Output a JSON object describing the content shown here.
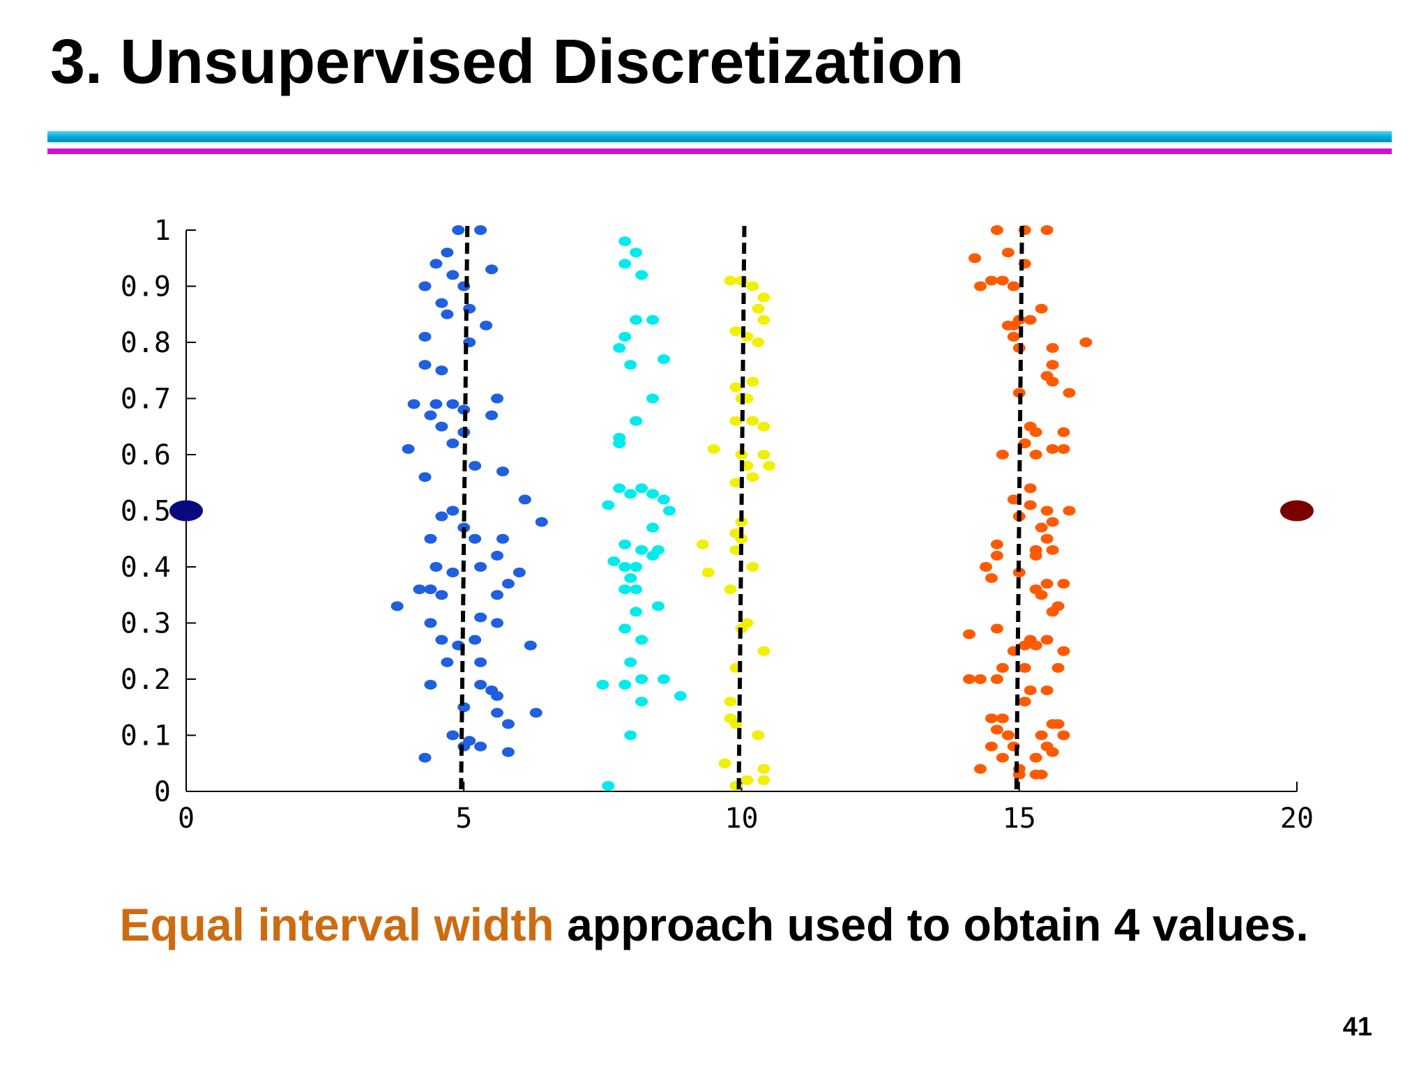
{
  "slide": {
    "title": "3. Unsupervised Discretization",
    "caption_emphasis": "Equal interval width",
    "caption_rest": " approach used to obtain 4 values.",
    "page_number": "41"
  },
  "colors": {
    "rule_cyan": "#00a8d8",
    "rule_magenta": "#d40fd4",
    "caption_emphasis": "#cc6c12"
  },
  "chart_data": {
    "type": "scatter",
    "title": "",
    "xlabel": "",
    "ylabel": "",
    "xlim": [
      0,
      20
    ],
    "ylim": [
      0,
      1
    ],
    "x_ticks": [
      0,
      5,
      10,
      15,
      20
    ],
    "x_tick_labels": [
      "0",
      "5",
      "10",
      "15",
      "20"
    ],
    "y_ticks": [
      0,
      0.1,
      0.2,
      0.3,
      0.4,
      0.5,
      0.6,
      0.7,
      0.8,
      0.9,
      1
    ],
    "y_tick_labels": [
      "0",
      "0.1",
      "0.2",
      "0.3",
      "0.4",
      "0.5",
      "0.6",
      "0.7",
      "0.8",
      "0.9",
      "1"
    ],
    "grid": false,
    "legend": "none",
    "cut_points": [
      5,
      10,
      15
    ],
    "cut_style": "dashed black vertical lines",
    "endpoints": [
      {
        "x": 0,
        "y": 0.5,
        "color": "#0a0a80"
      },
      {
        "x": 20,
        "y": 0.5,
        "color": "#7a0000"
      }
    ],
    "series": [
      {
        "color": "#1f5fe0",
        "points": [
          [
            4.9,
            1.0
          ],
          [
            5.3,
            1.0
          ],
          [
            4.7,
            0.96
          ],
          [
            4.8,
            0.92
          ],
          [
            4.5,
            0.94
          ],
          [
            5.5,
            0.93
          ],
          [
            4.3,
            0.9
          ],
          [
            4.6,
            0.87
          ],
          [
            5.1,
            0.86
          ],
          [
            5.4,
            0.83
          ],
          [
            4.7,
            0.85
          ],
          [
            5.0,
            0.9
          ],
          [
            4.3,
            0.81
          ],
          [
            5.1,
            0.8
          ],
          [
            4.3,
            0.76
          ],
          [
            4.6,
            0.75
          ],
          [
            4.1,
            0.69
          ],
          [
            4.5,
            0.69
          ],
          [
            4.8,
            0.69
          ],
          [
            5.0,
            0.68
          ],
          [
            5.6,
            0.7
          ],
          [
            5.5,
            0.67
          ],
          [
            4.6,
            0.65
          ],
          [
            5.0,
            0.64
          ],
          [
            4.4,
            0.67
          ],
          [
            4.0,
            0.61
          ],
          [
            4.8,
            0.62
          ],
          [
            5.2,
            0.58
          ],
          [
            5.7,
            0.57
          ],
          [
            4.3,
            0.56
          ],
          [
            6.1,
            0.52
          ],
          [
            6.4,
            0.48
          ],
          [
            4.6,
            0.49
          ],
          [
            4.8,
            0.5
          ],
          [
            5.0,
            0.47
          ],
          [
            5.2,
            0.45
          ],
          [
            4.4,
            0.45
          ],
          [
            5.7,
            0.45
          ],
          [
            5.6,
            0.42
          ],
          [
            4.5,
            0.4
          ],
          [
            4.8,
            0.39
          ],
          [
            5.3,
            0.4
          ],
          [
            6.0,
            0.39
          ],
          [
            5.8,
            0.37
          ],
          [
            4.2,
            0.36
          ],
          [
            4.6,
            0.35
          ],
          [
            5.6,
            0.35
          ],
          [
            4.4,
            0.36
          ],
          [
            3.8,
            0.33
          ],
          [
            4.4,
            0.3
          ],
          [
            5.3,
            0.31
          ],
          [
            5.6,
            0.3
          ],
          [
            4.6,
            0.27
          ],
          [
            4.9,
            0.26
          ],
          [
            5.2,
            0.27
          ],
          [
            6.2,
            0.26
          ],
          [
            4.7,
            0.23
          ],
          [
            5.3,
            0.23
          ],
          [
            4.4,
            0.19
          ],
          [
            5.3,
            0.19
          ],
          [
            5.5,
            0.18
          ],
          [
            5.6,
            0.17
          ],
          [
            5.0,
            0.15
          ],
          [
            5.6,
            0.14
          ],
          [
            5.8,
            0.12
          ],
          [
            4.8,
            0.1
          ],
          [
            5.1,
            0.09
          ],
          [
            5.3,
            0.08
          ],
          [
            5.8,
            0.07
          ],
          [
            6.3,
            0.14
          ],
          [
            4.3,
            0.06
          ],
          [
            5.0,
            0.08
          ]
        ]
      },
      {
        "color": "#00ecec",
        "points": [
          [
            7.9,
            0.98
          ],
          [
            8.1,
            0.96
          ],
          [
            7.9,
            0.94
          ],
          [
            8.2,
            0.92
          ],
          [
            8.1,
            0.84
          ],
          [
            8.4,
            0.84
          ],
          [
            7.9,
            0.81
          ],
          [
            7.8,
            0.79
          ],
          [
            8.0,
            0.76
          ],
          [
            8.6,
            0.77
          ],
          [
            8.4,
            0.7
          ],
          [
            8.1,
            0.66
          ],
          [
            7.8,
            0.63
          ],
          [
            7.8,
            0.62
          ],
          [
            7.8,
            0.54
          ],
          [
            8.0,
            0.53
          ],
          [
            8.2,
            0.54
          ],
          [
            8.4,
            0.53
          ],
          [
            8.6,
            0.52
          ],
          [
            8.7,
            0.5
          ],
          [
            7.6,
            0.51
          ],
          [
            8.4,
            0.47
          ],
          [
            7.9,
            0.44
          ],
          [
            8.2,
            0.43
          ],
          [
            8.5,
            0.43
          ],
          [
            8.4,
            0.42
          ],
          [
            7.7,
            0.41
          ],
          [
            7.9,
            0.4
          ],
          [
            8.1,
            0.4
          ],
          [
            8.0,
            0.38
          ],
          [
            7.9,
            0.36
          ],
          [
            8.1,
            0.36
          ],
          [
            8.5,
            0.33
          ],
          [
            8.1,
            0.32
          ],
          [
            7.9,
            0.29
          ],
          [
            8.2,
            0.27
          ],
          [
            8.0,
            0.23
          ],
          [
            7.5,
            0.19
          ],
          [
            7.9,
            0.19
          ],
          [
            8.2,
            0.2
          ],
          [
            8.6,
            0.2
          ],
          [
            8.9,
            0.17
          ],
          [
            8.2,
            0.16
          ],
          [
            8.0,
            0.1
          ],
          [
            7.6,
            0.01
          ]
        ]
      },
      {
        "color": "#f0f000",
        "points": [
          [
            9.8,
            0.91
          ],
          [
            10.0,
            0.91
          ],
          [
            10.2,
            0.9
          ],
          [
            10.4,
            0.88
          ],
          [
            10.3,
            0.86
          ],
          [
            10.4,
            0.84
          ],
          [
            9.9,
            0.82
          ],
          [
            10.1,
            0.81
          ],
          [
            10.3,
            0.8
          ],
          [
            10.2,
            0.73
          ],
          [
            9.9,
            0.72
          ],
          [
            10.0,
            0.7
          ],
          [
            10.1,
            0.7
          ],
          [
            9.9,
            0.66
          ],
          [
            10.2,
            0.66
          ],
          [
            10.4,
            0.65
          ],
          [
            9.5,
            0.61
          ],
          [
            10.0,
            0.6
          ],
          [
            10.4,
            0.6
          ],
          [
            10.5,
            0.58
          ],
          [
            10.1,
            0.58
          ],
          [
            10.2,
            0.56
          ],
          [
            9.9,
            0.55
          ],
          [
            10.0,
            0.48
          ],
          [
            9.9,
            0.46
          ],
          [
            10.0,
            0.45
          ],
          [
            9.9,
            0.43
          ],
          [
            9.3,
            0.44
          ],
          [
            10.2,
            0.4
          ],
          [
            9.4,
            0.39
          ],
          [
            9.8,
            0.36
          ],
          [
            10.1,
            0.3
          ],
          [
            10.0,
            0.29
          ],
          [
            10.4,
            0.25
          ],
          [
            9.9,
            0.22
          ],
          [
            9.8,
            0.16
          ],
          [
            9.8,
            0.13
          ],
          [
            9.9,
            0.12
          ],
          [
            10.3,
            0.1
          ],
          [
            9.7,
            0.05
          ],
          [
            10.4,
            0.04
          ],
          [
            10.1,
            0.02
          ],
          [
            10.4,
            0.02
          ],
          [
            9.9,
            0.01
          ]
        ]
      },
      {
        "color": "#ff5a00",
        "points": [
          [
            14.6,
            1.0
          ],
          [
            15.1,
            1.0
          ],
          [
            15.5,
            1.0
          ],
          [
            14.8,
            0.96
          ],
          [
            15.1,
            0.94
          ],
          [
            14.2,
            0.95
          ],
          [
            14.5,
            0.91
          ],
          [
            14.7,
            0.91
          ],
          [
            14.9,
            0.9
          ],
          [
            14.3,
            0.9
          ],
          [
            15.0,
            0.84
          ],
          [
            14.9,
            0.83
          ],
          [
            14.8,
            0.83
          ],
          [
            15.2,
            0.84
          ],
          [
            15.4,
            0.86
          ],
          [
            14.9,
            0.81
          ],
          [
            15.0,
            0.79
          ],
          [
            15.6,
            0.79
          ],
          [
            15.6,
            0.76
          ],
          [
            16.2,
            0.8
          ],
          [
            15.5,
            0.74
          ],
          [
            15.6,
            0.73
          ],
          [
            15.9,
            0.71
          ],
          [
            15.0,
            0.71
          ],
          [
            15.2,
            0.65
          ],
          [
            15.3,
            0.64
          ],
          [
            15.1,
            0.62
          ],
          [
            15.8,
            0.64
          ],
          [
            15.6,
            0.61
          ],
          [
            15.8,
            0.61
          ],
          [
            14.7,
            0.6
          ],
          [
            15.3,
            0.6
          ],
          [
            15.2,
            0.54
          ],
          [
            14.9,
            0.52
          ],
          [
            15.2,
            0.51
          ],
          [
            15.5,
            0.5
          ],
          [
            15.6,
            0.48
          ],
          [
            15.4,
            0.47
          ],
          [
            15.0,
            0.49
          ],
          [
            15.9,
            0.5
          ],
          [
            15.5,
            0.45
          ],
          [
            15.3,
            0.43
          ],
          [
            14.6,
            0.44
          ],
          [
            15.6,
            0.43
          ],
          [
            14.6,
            0.42
          ],
          [
            15.3,
            0.42
          ],
          [
            14.4,
            0.4
          ],
          [
            15.0,
            0.39
          ],
          [
            14.5,
            0.38
          ],
          [
            15.5,
            0.37
          ],
          [
            15.8,
            0.37
          ],
          [
            15.3,
            0.36
          ],
          [
            15.4,
            0.35
          ],
          [
            15.7,
            0.33
          ],
          [
            15.6,
            0.32
          ],
          [
            14.1,
            0.28
          ],
          [
            14.6,
            0.29
          ],
          [
            15.2,
            0.27
          ],
          [
            15.5,
            0.27
          ],
          [
            15.1,
            0.26
          ],
          [
            15.3,
            0.26
          ],
          [
            15.8,
            0.25
          ],
          [
            14.9,
            0.25
          ],
          [
            14.7,
            0.22
          ],
          [
            15.1,
            0.22
          ],
          [
            15.7,
            0.22
          ],
          [
            14.1,
            0.2
          ],
          [
            14.3,
            0.2
          ],
          [
            14.6,
            0.2
          ],
          [
            15.2,
            0.18
          ],
          [
            15.5,
            0.18
          ],
          [
            15.1,
            0.16
          ],
          [
            14.5,
            0.13
          ],
          [
            14.7,
            0.13
          ],
          [
            15.6,
            0.12
          ],
          [
            15.7,
            0.12
          ],
          [
            14.6,
            0.11
          ],
          [
            14.8,
            0.1
          ],
          [
            15.4,
            0.1
          ],
          [
            15.8,
            0.1
          ],
          [
            15.5,
            0.08
          ],
          [
            14.5,
            0.08
          ],
          [
            14.9,
            0.08
          ],
          [
            15.6,
            0.07
          ],
          [
            14.7,
            0.06
          ],
          [
            15.3,
            0.06
          ],
          [
            15.0,
            0.04
          ],
          [
            14.3,
            0.04
          ],
          [
            15.3,
            0.03
          ],
          [
            15.0,
            0.03
          ],
          [
            15.4,
            0.03
          ]
        ]
      }
    ]
  }
}
